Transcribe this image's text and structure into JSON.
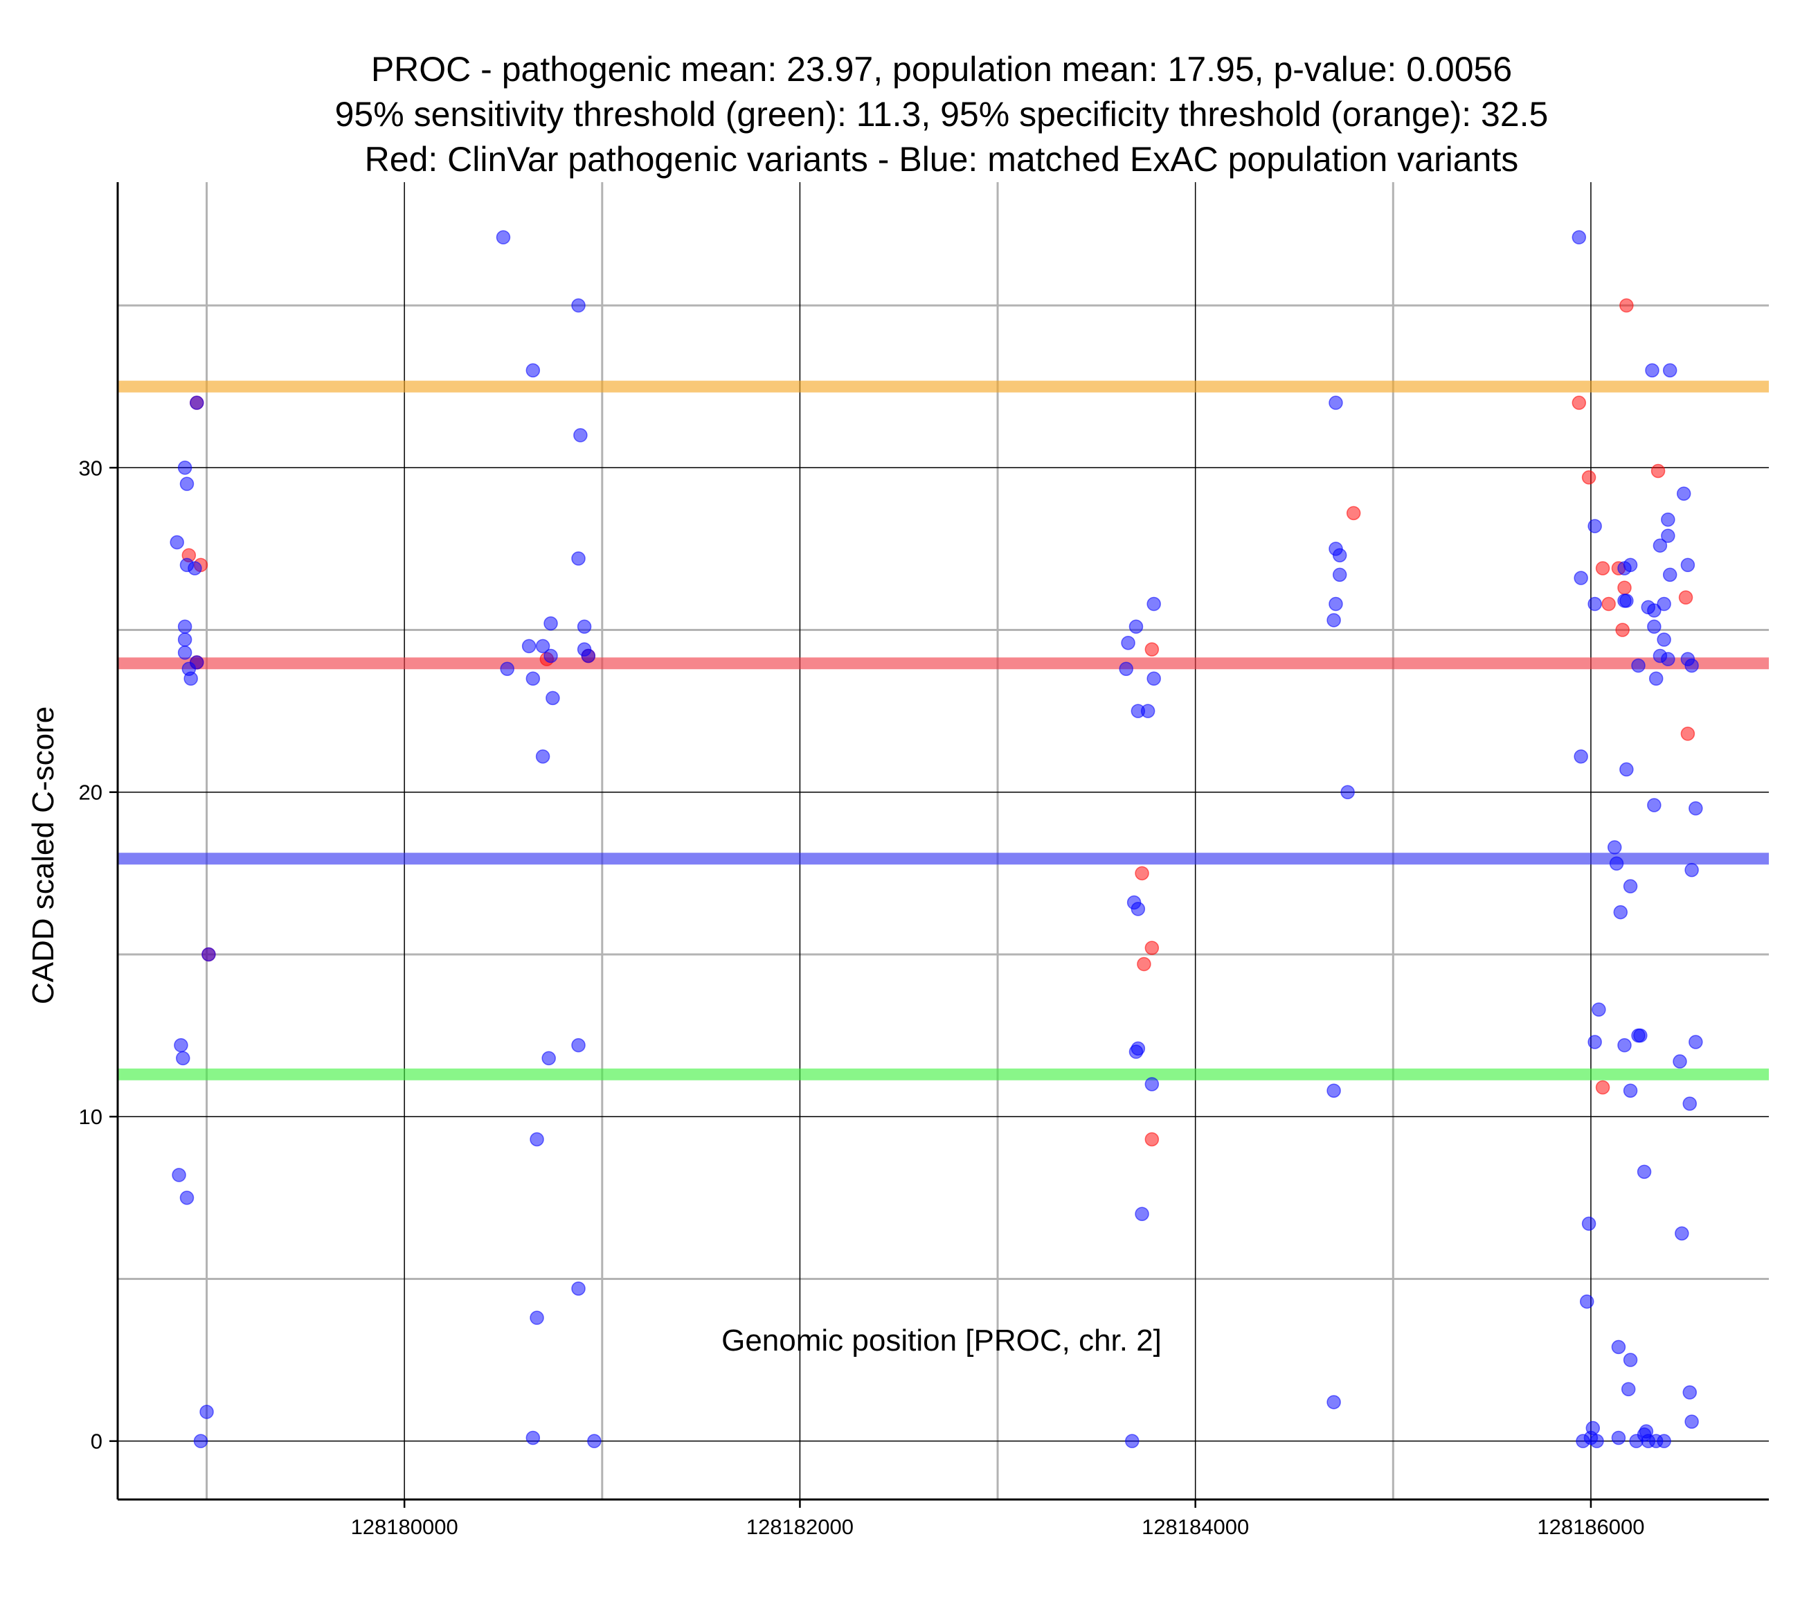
{
  "chart_data": {
    "type": "scatter",
    "title_lines": [
      "PROC - pathogenic mean: 23.97, population mean: 17.95, p-value: 0.0056",
      "95% sensitivity threshold (green): 11.3, 95% specificity threshold (orange): 32.5",
      "Red: ClinVar pathogenic variants - Blue: matched ExAC population variants"
    ],
    "xlabel": "Genomic position [PROC, chr. 2]",
    "ylabel": "CADD scaled C-score",
    "xlim": [
      128178550,
      128186900
    ],
    "ylim": [
      -1.8,
      38.8
    ],
    "x_ticks": [
      128180000,
      128182000,
      128184000,
      128186000
    ],
    "x_tick_labels": [
      "128180000",
      "128182000",
      "128184000",
      "128186000"
    ],
    "x_minor_grid": [
      128179000,
      128181000,
      128183000,
      128185000
    ],
    "y_ticks": [
      0,
      10,
      20,
      30
    ],
    "y_tick_labels": [
      "0",
      "10",
      "20",
      "30"
    ],
    "y_minor_grid": [
      5,
      15,
      25,
      35
    ],
    "reference_lines": [
      {
        "name": "specificity-threshold",
        "value": 32.5,
        "color": "#f5a623"
      },
      {
        "name": "pathogenic-mean",
        "value": 23.97,
        "color": "#f03c46"
      },
      {
        "name": "population-mean",
        "value": 17.95,
        "color": "#3232f0"
      },
      {
        "name": "sensitivity-threshold",
        "value": 11.3,
        "color": "#40f040"
      }
    ],
    "series": [
      {
        "name": "ClinVar pathogenic variants",
        "color": "#ff0000",
        "points": [
          [
            128178950,
            32.0
          ],
          [
            128178910,
            27.3
          ],
          [
            128178970,
            27.0
          ],
          [
            128178950,
            24.0
          ],
          [
            128179010,
            15.0
          ],
          [
            128180720,
            24.1
          ],
          [
            128180930,
            24.2
          ],
          [
            128183730,
            17.5
          ],
          [
            128183780,
            24.4
          ],
          [
            128183780,
            15.2
          ],
          [
            128183740,
            14.7
          ],
          [
            128183780,
            9.3
          ],
          [
            128184800,
            28.6
          ],
          [
            128185940,
            32.0
          ],
          [
            128185990,
            29.7
          ],
          [
            128186060,
            26.9
          ],
          [
            128186090,
            25.8
          ],
          [
            128186140,
            26.9
          ],
          [
            128186180,
            35.0
          ],
          [
            128186170,
            26.3
          ],
          [
            128186160,
            25.0
          ],
          [
            128186340,
            29.9
          ],
          [
            128186480,
            26.0
          ],
          [
            128186490,
            21.8
          ],
          [
            128186060,
            10.9
          ]
        ]
      },
      {
        "name": "matched ExAC population variants",
        "color": "#0000ff",
        "points": [
          [
            128178950,
            32.0
          ],
          [
            128178890,
            30.0
          ],
          [
            128178900,
            29.5
          ],
          [
            128178850,
            27.7
          ],
          [
            128178900,
            27.0
          ],
          [
            128178940,
            26.9
          ],
          [
            128178890,
            25.1
          ],
          [
            128178890,
            24.7
          ],
          [
            128178890,
            24.3
          ],
          [
            128178950,
            24.0
          ],
          [
            128178910,
            23.8
          ],
          [
            128178920,
            23.5
          ],
          [
            128179010,
            15.0
          ],
          [
            128178870,
            12.2
          ],
          [
            128178880,
            11.8
          ],
          [
            128178860,
            8.2
          ],
          [
            128178900,
            7.5
          ],
          [
            128179000,
            0.9
          ],
          [
            128178970,
            0.0
          ],
          [
            128180500,
            37.1
          ],
          [
            128180650,
            33.0
          ],
          [
            128180880,
            35.0
          ],
          [
            128180890,
            31.0
          ],
          [
            128180880,
            27.2
          ],
          [
            128180740,
            25.2
          ],
          [
            128180910,
            25.1
          ],
          [
            128180630,
            24.5
          ],
          [
            128180700,
            24.5
          ],
          [
            128180910,
            24.4
          ],
          [
            128180740,
            24.2
          ],
          [
            128180930,
            24.2
          ],
          [
            128180520,
            23.8
          ],
          [
            128180650,
            23.5
          ],
          [
            128180750,
            22.9
          ],
          [
            128180700,
            21.1
          ],
          [
            128180880,
            12.2
          ],
          [
            128180730,
            11.8
          ],
          [
            128180670,
            9.3
          ],
          [
            128180880,
            4.7
          ],
          [
            128180670,
            3.8
          ],
          [
            128180650,
            0.1
          ],
          [
            128180960,
            0.0
          ],
          [
            128183700,
            25.1
          ],
          [
            128183790,
            25.8
          ],
          [
            128183660,
            24.6
          ],
          [
            128183650,
            23.8
          ],
          [
            128183790,
            23.5
          ],
          [
            128183710,
            22.5
          ],
          [
            128183760,
            22.5
          ],
          [
            128183690,
            16.6
          ],
          [
            128183710,
            16.4
          ],
          [
            128183710,
            12.1
          ],
          [
            128183700,
            12.0
          ],
          [
            128183780,
            11.0
          ],
          [
            128183730,
            7.0
          ],
          [
            128183680,
            0.0
          ],
          [
            128184710,
            32.0
          ],
          [
            128184710,
            27.5
          ],
          [
            128184730,
            27.3
          ],
          [
            128184730,
            26.7
          ],
          [
            128184710,
            25.8
          ],
          [
            128184700,
            25.3
          ],
          [
            128184770,
            20.0
          ],
          [
            128184700,
            10.8
          ],
          [
            128184700,
            1.2
          ],
          [
            128185940,
            37.1
          ],
          [
            128186310,
            33.0
          ],
          [
            128186400,
            33.0
          ],
          [
            128186470,
            29.2
          ],
          [
            128186390,
            28.4
          ],
          [
            128186020,
            28.2
          ],
          [
            128186390,
            27.9
          ],
          [
            128186350,
            27.6
          ],
          [
            128186200,
            27.0
          ],
          [
            128186490,
            27.0
          ],
          [
            128186400,
            26.7
          ],
          [
            128185950,
            26.6
          ],
          [
            128186170,
            26.9
          ],
          [
            128186020,
            25.8
          ],
          [
            128186170,
            25.9
          ],
          [
            128186180,
            25.9
          ],
          [
            128186290,
            25.7
          ],
          [
            128186320,
            25.6
          ],
          [
            128186370,
            25.8
          ],
          [
            128186320,
            25.1
          ],
          [
            128186370,
            24.7
          ],
          [
            128186350,
            24.2
          ],
          [
            128186390,
            24.1
          ],
          [
            128186490,
            24.1
          ],
          [
            128186240,
            23.9
          ],
          [
            128186330,
            23.5
          ],
          [
            128186510,
            23.9
          ],
          [
            128185950,
            21.1
          ],
          [
            128186180,
            20.7
          ],
          [
            128186320,
            19.6
          ],
          [
            128186530,
            19.5
          ],
          [
            128186120,
            18.3
          ],
          [
            128186130,
            17.8
          ],
          [
            128186510,
            17.6
          ],
          [
            128186200,
            17.1
          ],
          [
            128186150,
            16.3
          ],
          [
            128186040,
            13.3
          ],
          [
            128186240,
            12.5
          ],
          [
            128186250,
            12.5
          ],
          [
            128186020,
            12.3
          ],
          [
            128186170,
            12.2
          ],
          [
            128186530,
            12.3
          ],
          [
            128186450,
            11.7
          ],
          [
            128186200,
            10.8
          ],
          [
            128186500,
            10.4
          ],
          [
            128186270,
            8.3
          ],
          [
            128185990,
            6.7
          ],
          [
            128186460,
            6.4
          ],
          [
            128185980,
            4.3
          ],
          [
            128186140,
            2.9
          ],
          [
            128186200,
            2.5
          ],
          [
            128186190,
            1.6
          ],
          [
            128186500,
            1.5
          ],
          [
            128186510,
            0.6
          ],
          [
            128186010,
            0.4
          ],
          [
            128186280,
            0.3
          ],
          [
            128186270,
            0.2
          ],
          [
            128185960,
            0.0
          ],
          [
            128186000,
            0.1
          ],
          [
            128186030,
            0.0
          ],
          [
            128186140,
            0.1
          ],
          [
            128186230,
            0.0
          ],
          [
            128186290,
            0.0
          ],
          [
            128186330,
            0.0
          ],
          [
            128186370,
            0.0
          ]
        ]
      }
    ]
  }
}
